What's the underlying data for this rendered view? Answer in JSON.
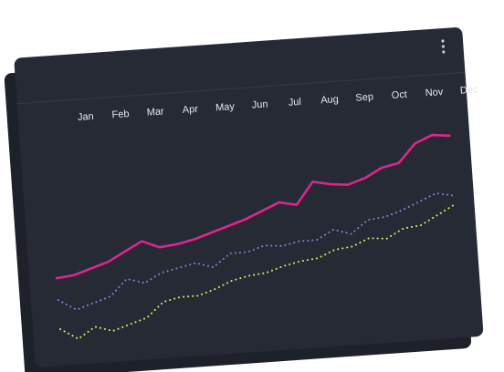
{
  "chart_data": {
    "type": "line",
    "categories": [
      "Jan",
      null,
      "Feb",
      null,
      "Mar",
      null,
      "Apr",
      null,
      "May",
      null,
      "Jun",
      null,
      "Jul",
      null,
      "Aug",
      null,
      "Sep",
      null,
      "Oct",
      null,
      "Nov",
      null,
      "Dec",
      null
    ],
    "ylim": [
      -20,
      100
    ],
    "series": [
      {
        "color": "#e0248f",
        "style": "solid",
        "values": [
          20,
          21,
          24,
          27,
          32,
          37,
          33,
          34,
          36,
          39,
          42,
          45,
          49,
          53,
          51,
          63,
          61,
          60,
          63,
          68,
          70,
          80,
          84,
          83
        ]
      },
      {
        "color": "#8c7bd6",
        "style": "dotted",
        "values": [
          8,
          2,
          5,
          8,
          17,
          14,
          19,
          21,
          23,
          20,
          27,
          27,
          30,
          29,
          31,
          31,
          36,
          33,
          40,
          41,
          44,
          48,
          52,
          50
        ]
      },
      {
        "color": "#c6f06a",
        "style": "dotted",
        "values": [
          -8,
          -14,
          -8,
          -11,
          -8,
          -5,
          3,
          5,
          5,
          8,
          12,
          14,
          15,
          18,
          20,
          21,
          25,
          26,
          30,
          29,
          34,
          35,
          40,
          45
        ]
      }
    ]
  }
}
